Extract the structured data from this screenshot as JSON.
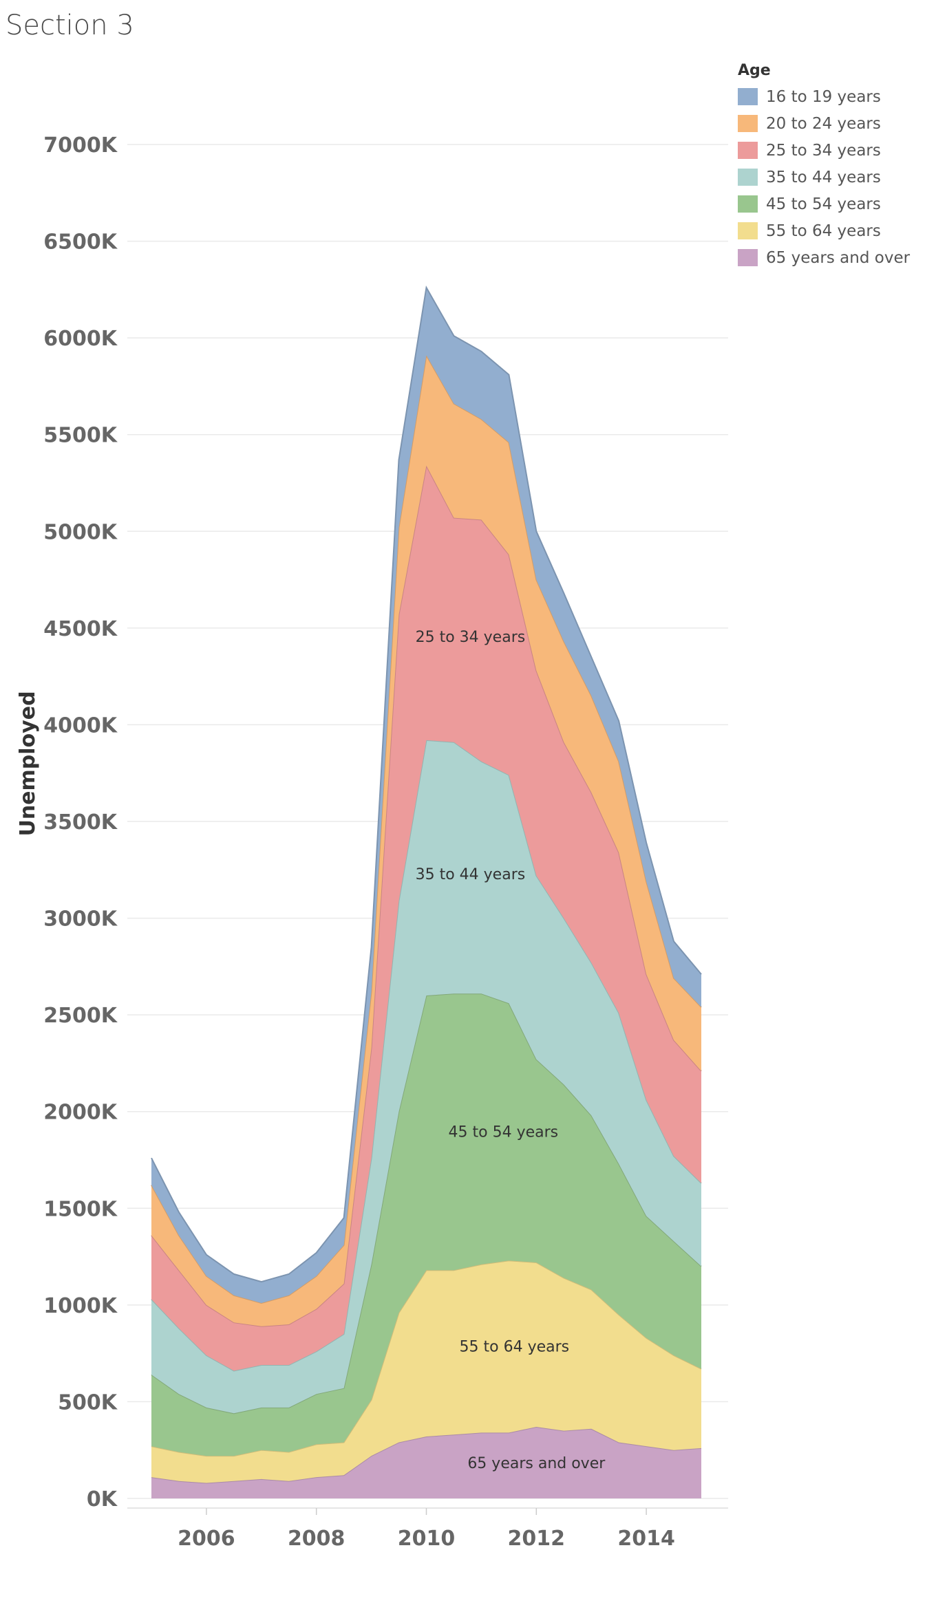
{
  "title": "Section 3",
  "chart_data": {
    "type": "area",
    "stacked": true,
    "ylabel": "Unemployed",
    "xlabel": "",
    "legend_title": "Age",
    "legend_position": "top-right",
    "grid": "horizontal",
    "ylim": [
      0,
      7500000
    ],
    "xlim": [
      2005.0,
      2015.08
    ],
    "yticks": [
      0,
      500000,
      1000000,
      1500000,
      2000000,
      2500000,
      3000000,
      3500000,
      4000000,
      4500000,
      5000000,
      5500000,
      6000000,
      6500000,
      7000000
    ],
    "yticklabels": [
      "0K",
      "500K",
      "1000K",
      "1500K",
      "2000K",
      "2500K",
      "3000K",
      "3500K",
      "4000K",
      "4500K",
      "5000K",
      "5500K",
      "6000K",
      "6500K",
      "7000K"
    ],
    "xticks": [
      2006,
      2008,
      2010,
      2012,
      2014
    ],
    "xticklabels": [
      "2006",
      "2008",
      "2010",
      "2012",
      "2014"
    ],
    "x": [
      2005.0,
      2005.5,
      2006.0,
      2006.5,
      2007.0,
      2007.5,
      2008.0,
      2008.5,
      2009.0,
      2009.5,
      2010.0,
      2010.5,
      2011.0,
      2011.5,
      2012.0,
      2012.5,
      2013.0,
      2013.5,
      2014.0,
      2014.5,
      2015.0
    ],
    "series": [
      {
        "name": "65 years and over",
        "color": "#c9a3c5",
        "values": [
          110000,
          90000,
          80000,
          90000,
          100000,
          90000,
          110000,
          120000,
          220000,
          290000,
          320000,
          330000,
          340000,
          340000,
          370000,
          350000,
          360000,
          290000,
          270000,
          250000,
          260000
        ]
      },
      {
        "name": "55 to 64 years",
        "color": "#f2dd8e",
        "values": [
          160000,
          150000,
          140000,
          130000,
          150000,
          150000,
          170000,
          170000,
          290000,
          670000,
          860000,
          850000,
          870000,
          890000,
          850000,
          790000,
          720000,
          660000,
          560000,
          490000,
          410000
        ]
      },
      {
        "name": "45 to 54 years",
        "color": "#99c68e",
        "values": [
          370000,
          300000,
          250000,
          220000,
          220000,
          230000,
          260000,
          280000,
          700000,
          1040000,
          1420000,
          1430000,
          1400000,
          1330000,
          1050000,
          1000000,
          900000,
          780000,
          630000,
          590000,
          530000
        ]
      },
      {
        "name": "35 to 44 years",
        "color": "#add3cf",
        "values": [
          390000,
          340000,
          270000,
          220000,
          220000,
          220000,
          220000,
          280000,
          550000,
          1090000,
          1320000,
          1300000,
          1200000,
          1180000,
          950000,
          860000,
          790000,
          780000,
          600000,
          440000,
          430000
        ]
      },
      {
        "name": "25 to 34 years",
        "color": "#ec9b9b",
        "values": [
          330000,
          300000,
          260000,
          250000,
          200000,
          210000,
          220000,
          260000,
          570000,
          1480000,
          1420000,
          1160000,
          1250000,
          1140000,
          1060000,
          910000,
          880000,
          830000,
          650000,
          600000,
          580000
        ]
      },
      {
        "name": "20 to 24 years",
        "color": "#f7b87a",
        "values": [
          260000,
          180000,
          150000,
          140000,
          120000,
          150000,
          170000,
          200000,
          290000,
          450000,
          570000,
          590000,
          520000,
          580000,
          470000,
          520000,
          500000,
          470000,
          480000,
          320000,
          330000
        ]
      },
      {
        "name": "16 to 19 years",
        "color": "#92aecf",
        "values": [
          140000,
          120000,
          110000,
          110000,
          110000,
          110000,
          120000,
          140000,
          230000,
          350000,
          350000,
          350000,
          350000,
          350000,
          250000,
          250000,
          200000,
          210000,
          200000,
          190000,
          170000
        ]
      }
    ],
    "area_labels": [
      "25 to 34 years",
      "35 to 44 years",
      "45 to 54 years",
      "55 to 64 years",
      "65 years and over"
    ]
  }
}
